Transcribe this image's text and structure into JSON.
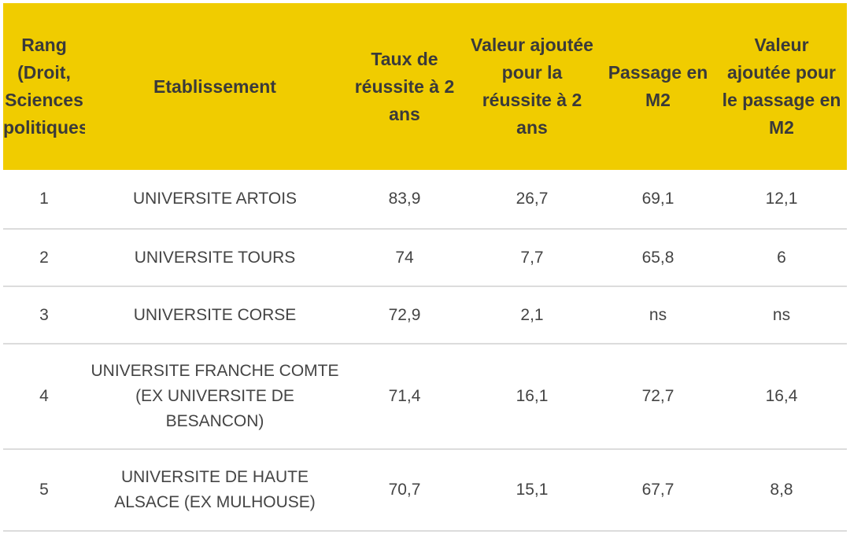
{
  "table": {
    "headers": {
      "rank": [
        "Rang",
        "(Droit,",
        "Sciences",
        "politiques"
      ],
      "etablissement": "Etablissement",
      "taux": "Taux de réussite à 2 ans",
      "valeur_reussite": "Valeur ajoutée pour la réussite à 2 ans",
      "passage": "Passage en M2",
      "valeur_passage": "Valeur ajoutée pour le passage en M2"
    },
    "rows": [
      {
        "rank": "1",
        "etablissement": "UNIVERSITE ARTOIS",
        "taux": "83,9",
        "valeur_reussite": "26,7",
        "passage": "69,1",
        "valeur_passage": "12,1"
      },
      {
        "rank": "2",
        "etablissement": "UNIVERSITE TOURS",
        "taux": "74",
        "valeur_reussite": "7,7",
        "passage": "65,8",
        "valeur_passage": "6"
      },
      {
        "rank": "3",
        "etablissement": "UNIVERSITE CORSE",
        "taux": "72,9",
        "valeur_reussite": "2,1",
        "passage": "ns",
        "valeur_passage": "ns"
      },
      {
        "rank": "4",
        "etablissement": "UNIVERSITE FRANCHE COMTE (EX UNIVERSITE DE BESANCON)",
        "taux": "71,4",
        "valeur_reussite": "16,1",
        "passage": "72,7",
        "valeur_passage": "16,4"
      },
      {
        "rank": "5",
        "etablissement": "UNIVERSITE DE HAUTE ALSACE (EX MULHOUSE)",
        "taux": "70,7",
        "valeur_reussite": "15,1",
        "passage": "67,7",
        "valeur_passage": "8,8"
      }
    ]
  }
}
